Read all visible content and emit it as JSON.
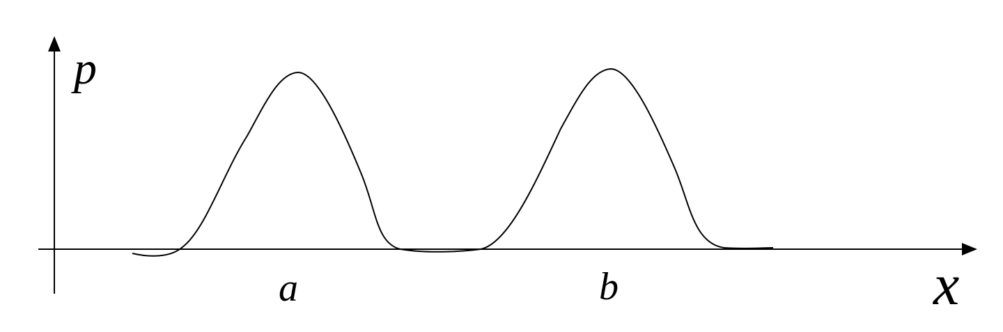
{
  "diagram": {
    "y_axis_label": "p",
    "x_axis_label": "x",
    "peak_labels": [
      "a",
      "b"
    ],
    "curve_color": "#000000",
    "background": "#ffffff"
  }
}
